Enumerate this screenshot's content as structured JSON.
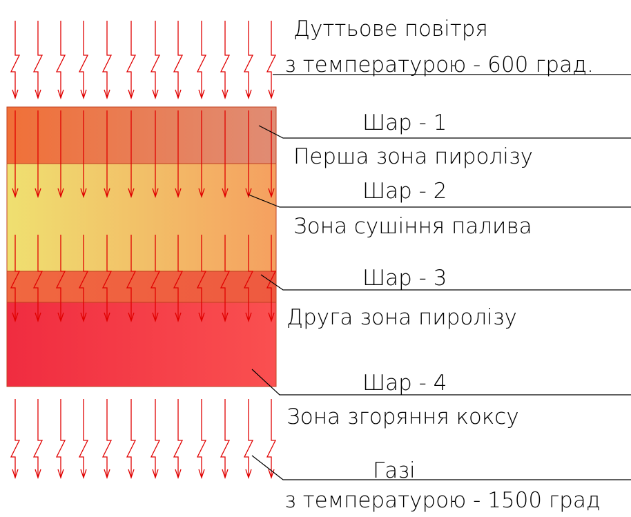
{
  "air": {
    "title": "Дуттьове повітря",
    "temperature": "з температурою - 600 град."
  },
  "layers": [
    {
      "label": "Шар - 1",
      "zone": "Перша зона пиролізу"
    },
    {
      "label": "Шар - 2",
      "zone": "Зона сушіння палива"
    },
    {
      "label": "Шар - 3",
      "zone": "Друга зона пиролізу"
    },
    {
      "label": "Шар - 4",
      "zone": "Зона згоряння коксу"
    }
  ],
  "gases": {
    "title": "Газі",
    "temperature": "з температурою - 1500 град"
  }
}
